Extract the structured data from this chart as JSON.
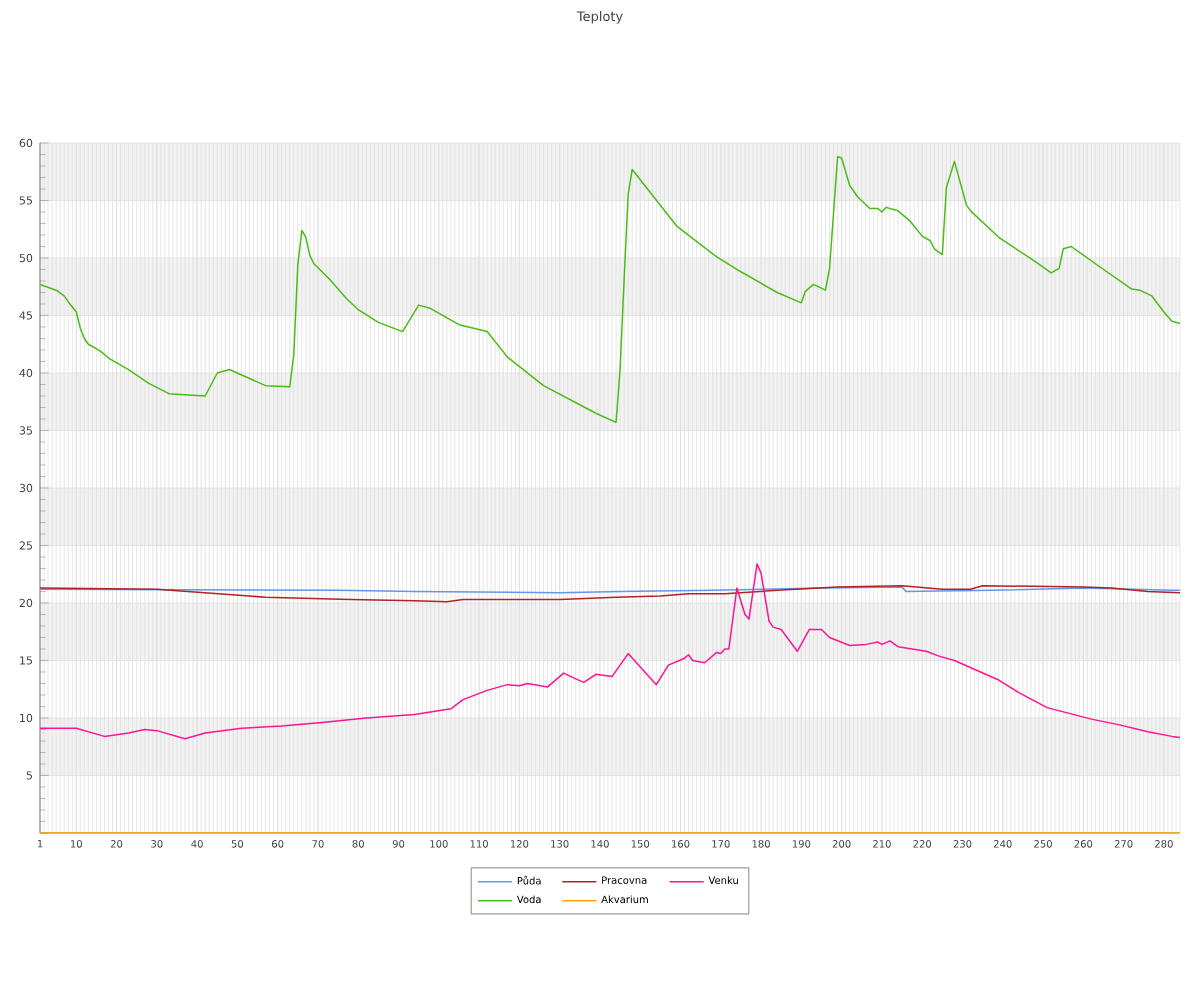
{
  "chart_data": {
    "type": "line",
    "title": "Teploty",
    "xlim": [
      1,
      284
    ],
    "xticks": [
      1,
      10,
      20,
      30,
      40,
      50,
      60,
      70,
      80,
      90,
      100,
      110,
      120,
      130,
      140,
      150,
      160,
      170,
      180,
      190,
      200,
      210,
      220,
      230,
      240,
      250,
      260,
      270,
      280
    ],
    "ylim": [
      0,
      60
    ],
    "yticks": [
      {
        "value": 0,
        "label": null
      },
      5,
      10,
      15,
      20,
      25,
      30,
      35,
      40,
      45,
      50,
      55,
      60
    ],
    "grid": true,
    "legend": "bottom",
    "marker": "none",
    "line_style": "solid",
    "bands": [
      {
        "axis": "y",
        "from": 5,
        "to": 10,
        "color": "#f2f2f2"
      },
      {
        "axis": "y",
        "from": 15,
        "to": 20,
        "color": "#f2f2f2"
      },
      {
        "axis": "y",
        "from": 25,
        "to": 30,
        "color": "#f2f2f2"
      },
      {
        "axis": "y",
        "from": 35,
        "to": 40,
        "color": "#f2f2f2"
      },
      {
        "axis": "y",
        "from": 45,
        "to": 50,
        "color": "#f2f2f2"
      },
      {
        "axis": "y",
        "from": 55,
        "to": 60,
        "color": "#f2f2f2"
      }
    ],
    "series": [
      {
        "name": "Půda",
        "color": "#6495ed",
        "x": [
          1,
          75,
          94,
          130,
          145,
          168,
          195,
          215,
          216,
          237,
          260,
          282,
          284
        ],
        "values": [
          21.2,
          21.1,
          21.0,
          20.9,
          21.0,
          21.1,
          21.3,
          21.4,
          21.0,
          21.1,
          21.3,
          21.1,
          21.1
        ]
      },
      {
        "name": "Pracovna",
        "color": "#b22222",
        "x": [
          1,
          30,
          57,
          78,
          94,
          102,
          106,
          130,
          144,
          155,
          162,
          171,
          184,
          199,
          215,
          225,
          232,
          235,
          260,
          267,
          276,
          284
        ],
        "values": [
          21.3,
          21.2,
          20.5,
          20.3,
          20.2,
          20.1,
          20.3,
          20.3,
          20.5,
          20.6,
          20.8,
          20.8,
          21.1,
          21.4,
          21.5,
          21.2,
          21.2,
          21.5,
          21.4,
          21.3,
          21.0,
          20.9
        ]
      },
      {
        "name": "Venku",
        "color": "#ff1493",
        "x": [
          1,
          10,
          17,
          23,
          27,
          30,
          37,
          42,
          51,
          61,
          71,
          82,
          94,
          103,
          106,
          112,
          117,
          120,
          122,
          127,
          131,
          134,
          136,
          139,
          143,
          147,
          154,
          157,
          161,
          162,
          163,
          166,
          169,
          170,
          171,
          172,
          174,
          176,
          177,
          179,
          180,
          182,
          183,
          185,
          189,
          192,
          195,
          197,
          202,
          206,
          209,
          210,
          212,
          214,
          221,
          224,
          228,
          239,
          244,
          251,
          262,
          269,
          276,
          279,
          282,
          284
        ],
        "values": [
          9.1,
          9.1,
          8.4,
          8.7,
          9.0,
          8.9,
          8.2,
          8.7,
          9.1,
          9.3,
          9.6,
          10.0,
          10.3,
          10.8,
          11.6,
          12.4,
          12.9,
          12.8,
          13.0,
          12.7,
          13.9,
          13.4,
          13.1,
          13.8,
          13.6,
          15.6,
          12.9,
          14.6,
          15.2,
          15.5,
          15.0,
          14.8,
          15.7,
          15.6,
          16.0,
          16.0,
          21.3,
          19.0,
          18.6,
          23.4,
          22.6,
          18.4,
          17.9,
          17.7,
          15.8,
          17.7,
          17.7,
          17.0,
          16.3,
          16.4,
          16.6,
          16.4,
          16.7,
          16.2,
          15.8,
          15.4,
          15.0,
          13.3,
          12.2,
          10.9,
          9.9,
          9.4,
          8.8,
          8.6,
          8.4,
          8.3
        ]
      },
      {
        "name": "Voda",
        "color": "#4cbb17",
        "x": [
          1,
          5,
          7,
          8,
          10,
          11,
          12,
          13,
          16,
          18,
          23,
          28,
          33,
          42,
          45,
          48,
          57,
          63,
          64,
          65,
          66,
          67,
          68,
          69,
          73,
          77,
          80,
          85,
          91,
          95,
          98,
          105,
          112,
          117,
          126,
          139,
          144,
          145,
          146,
          147,
          148,
          159,
          163,
          169,
          174,
          184,
          190,
          191,
          193,
          196,
          197,
          199,
          200,
          202,
          204,
          207,
          209,
          210,
          211,
          214,
          217,
          220,
          222,
          223,
          225,
          226,
          228,
          231,
          232,
          239,
          248,
          252,
          254,
          255,
          257,
          263,
          272,
          274,
          277,
          280,
          282,
          284
        ],
        "values": [
          47.7,
          47.2,
          46.7,
          46.2,
          45.3,
          43.9,
          43.0,
          42.5,
          41.9,
          41.3,
          40.3,
          39.1,
          38.2,
          38.0,
          40.0,
          40.3,
          38.9,
          38.8,
          41.6,
          49.4,
          52.4,
          51.8,
          50.2,
          49.5,
          48.1,
          46.5,
          45.5,
          44.4,
          43.6,
          45.9,
          45.6,
          44.2,
          43.6,
          41.4,
          38.9,
          36.5,
          35.7,
          40.3,
          48.1,
          55.5,
          57.7,
          52.8,
          51.7,
          50.1,
          49.0,
          47.0,
          46.1,
          47.1,
          47.7,
          47.2,
          49.1,
          58.8,
          58.7,
          56.3,
          55.3,
          54.3,
          54.3,
          54.0,
          54.4,
          54.1,
          53.2,
          51.9,
          51.5,
          50.8,
          50.3,
          56.1,
          58.4,
          54.6,
          54.1,
          51.8,
          49.7,
          48.7,
          49.1,
          50.8,
          51.0,
          49.5,
          47.3,
          47.2,
          46.7,
          45.3,
          44.5,
          44.3
        ]
      },
      {
        "name": "Akvarium",
        "color": "#ffa500",
        "x": [
          1,
          284
        ],
        "values": [
          0,
          0
        ]
      }
    ]
  }
}
